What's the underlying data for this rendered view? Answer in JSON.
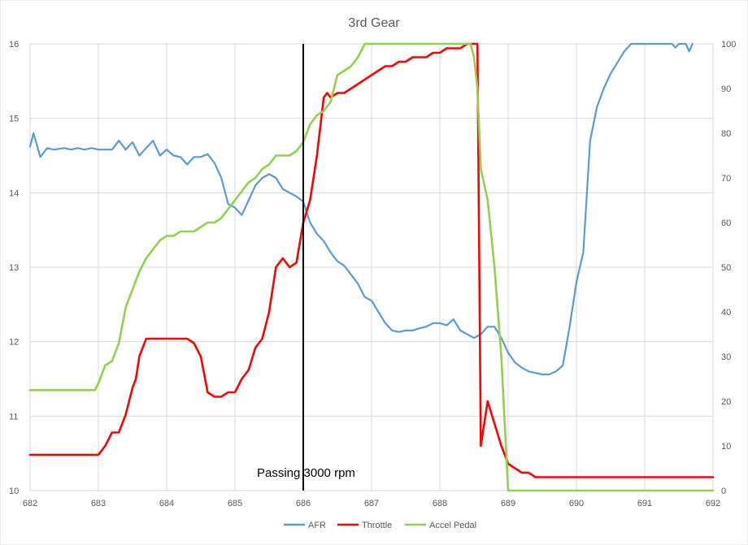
{
  "chart_data": {
    "type": "line",
    "title": "3rd Gear",
    "xlabel": "",
    "ylabel": "",
    "xlim": [
      682,
      692
    ],
    "ylim": [
      10,
      16
    ],
    "y2lim": [
      0,
      100
    ],
    "x_ticks": [
      682,
      683,
      684,
      685,
      686,
      687,
      688,
      689,
      690,
      691,
      692
    ],
    "y_ticks": [
      10,
      11,
      12,
      13,
      14,
      15,
      16
    ],
    "y2_ticks": [
      0,
      10,
      20,
      30,
      40,
      50,
      60,
      70,
      80,
      90,
      100
    ],
    "grid": true,
    "legend_position": "bottom",
    "annotation": {
      "text": "Passing 3000 rpm",
      "x": 686
    },
    "series": [
      {
        "name": "AFR",
        "axis": "left",
        "color": "#5b9bd5",
        "x": [
          682.0,
          682.05,
          682.15,
          682.25,
          682.35,
          682.5,
          682.6,
          682.7,
          682.8,
          682.9,
          683.0,
          683.1,
          683.2,
          683.3,
          683.4,
          683.5,
          683.6,
          683.7,
          683.8,
          683.9,
          684.0,
          684.1,
          684.2,
          684.3,
          684.4,
          684.5,
          684.6,
          684.7,
          684.8,
          684.9,
          685.0,
          685.1,
          685.2,
          685.3,
          685.4,
          685.5,
          685.6,
          685.7,
          685.8,
          685.9,
          686.0,
          686.1,
          686.2,
          686.3,
          686.4,
          686.5,
          686.6,
          686.7,
          686.8,
          686.9,
          687.0,
          687.1,
          687.2,
          687.3,
          687.4,
          687.5,
          687.6,
          687.7,
          687.8,
          687.9,
          688.0,
          688.1,
          688.2,
          688.3,
          688.4,
          688.5,
          688.6,
          688.7,
          688.8,
          688.9,
          689.0,
          689.1,
          689.2,
          689.3,
          689.4,
          689.5,
          689.6,
          689.7,
          689.8,
          689.9,
          690.0,
          690.1,
          690.2,
          690.3,
          690.4,
          690.5,
          690.6,
          690.7,
          690.8,
          691.0,
          691.2,
          691.3,
          691.4,
          691.45,
          691.5,
          691.6,
          691.65,
          691.7
        ],
        "values": [
          14.62,
          14.8,
          14.48,
          14.6,
          14.58,
          14.6,
          14.58,
          14.6,
          14.58,
          14.6,
          14.58,
          14.58,
          14.58,
          14.7,
          14.58,
          14.68,
          14.5,
          14.6,
          14.7,
          14.5,
          14.58,
          14.5,
          14.48,
          14.38,
          14.48,
          14.48,
          14.52,
          14.4,
          14.2,
          13.85,
          13.8,
          13.7,
          13.9,
          14.1,
          14.2,
          14.25,
          14.2,
          14.05,
          14.0,
          13.95,
          13.88,
          13.6,
          13.45,
          13.35,
          13.2,
          13.08,
          13.02,
          12.9,
          12.78,
          12.6,
          12.55,
          12.4,
          12.25,
          12.15,
          12.13,
          12.15,
          12.15,
          12.18,
          12.2,
          12.25,
          12.25,
          12.22,
          12.3,
          12.15,
          12.1,
          12.05,
          12.1,
          12.2,
          12.2,
          12.05,
          11.85,
          11.72,
          11.65,
          11.6,
          11.58,
          11.56,
          11.56,
          11.6,
          11.68,
          12.2,
          12.8,
          13.2,
          14.7,
          15.15,
          15.4,
          15.6,
          15.75,
          15.9,
          16.0,
          16.0,
          16.0,
          16.0,
          16.0,
          15.95,
          16.0,
          16.0,
          15.9,
          16.0
        ]
      },
      {
        "name": "Throttle",
        "axis": "right",
        "color": "#ff0000",
        "x": [
          682.0,
          682.5,
          683.0,
          683.1,
          683.2,
          683.3,
          683.4,
          683.5,
          683.55,
          683.6,
          683.7,
          683.8,
          683.9,
          684.0,
          684.1,
          684.2,
          684.3,
          684.4,
          684.5,
          684.6,
          684.7,
          684.8,
          684.9,
          685.0,
          685.1,
          685.2,
          685.3,
          685.4,
          685.5,
          685.6,
          685.7,
          685.8,
          685.9,
          686.0,
          686.1,
          686.2,
          686.3,
          686.35,
          686.4,
          686.5,
          686.6,
          686.7,
          686.8,
          686.9,
          687.0,
          687.1,
          687.2,
          687.3,
          687.4,
          687.5,
          687.6,
          687.7,
          687.8,
          687.9,
          688.0,
          688.1,
          688.2,
          688.3,
          688.4,
          688.45,
          688.5,
          688.55,
          688.6,
          688.7,
          688.8,
          688.9,
          689.0,
          689.1,
          689.2,
          689.3,
          689.4,
          689.5,
          689.6,
          690.0,
          690.3,
          691.0,
          692.0
        ],
        "values": [
          8,
          8,
          8,
          10,
          13,
          13,
          17,
          23,
          25,
          30,
          34,
          34,
          34,
          34,
          34,
          34,
          34,
          33,
          30,
          22,
          21,
          21,
          22,
          22,
          25,
          27,
          32,
          34,
          40,
          50,
          52,
          50,
          51,
          60,
          65,
          75,
          88,
          89,
          88,
          89,
          89,
          90,
          91,
          92,
          93,
          94,
          95,
          95,
          96,
          96,
          97,
          97,
          97,
          98,
          98,
          99,
          99,
          99,
          100,
          100,
          100,
          100,
          10,
          20,
          15,
          10,
          6,
          5,
          4,
          4,
          3,
          3,
          3,
          3,
          3,
          3,
          3
        ]
      },
      {
        "name": "Accel Pedal",
        "axis": "right",
        "color": "#92d050",
        "x": [
          682.0,
          682.5,
          682.95,
          683.0,
          683.1,
          683.2,
          683.3,
          683.4,
          683.5,
          683.6,
          683.7,
          683.8,
          683.9,
          684.0,
          684.1,
          684.2,
          684.3,
          684.4,
          684.5,
          684.6,
          684.7,
          684.8,
          684.9,
          685.0,
          685.1,
          685.2,
          685.3,
          685.4,
          685.5,
          685.6,
          685.7,
          685.8,
          685.9,
          686.0,
          686.1,
          686.2,
          686.3,
          686.4,
          686.5,
          686.6,
          686.7,
          686.8,
          686.9,
          687.0,
          687.5,
          688.0,
          688.4,
          688.45,
          688.5,
          688.55,
          688.6,
          688.7,
          688.8,
          688.9,
          689.0,
          692.0
        ],
        "values": [
          22.5,
          22.5,
          22.5,
          24,
          28,
          29,
          33,
          41,
          45,
          49,
          52,
          54,
          56,
          57,
          57,
          58,
          58,
          58,
          59,
          60,
          60,
          61,
          63,
          65,
          67,
          69,
          70,
          72,
          73,
          75,
          75,
          75,
          76,
          78,
          82,
          84,
          85,
          87,
          93,
          94,
          95,
          97,
          100,
          100,
          100,
          100,
          100,
          100,
          97,
          90,
          72,
          65,
          50,
          30,
          0,
          0
        ]
      }
    ]
  }
}
